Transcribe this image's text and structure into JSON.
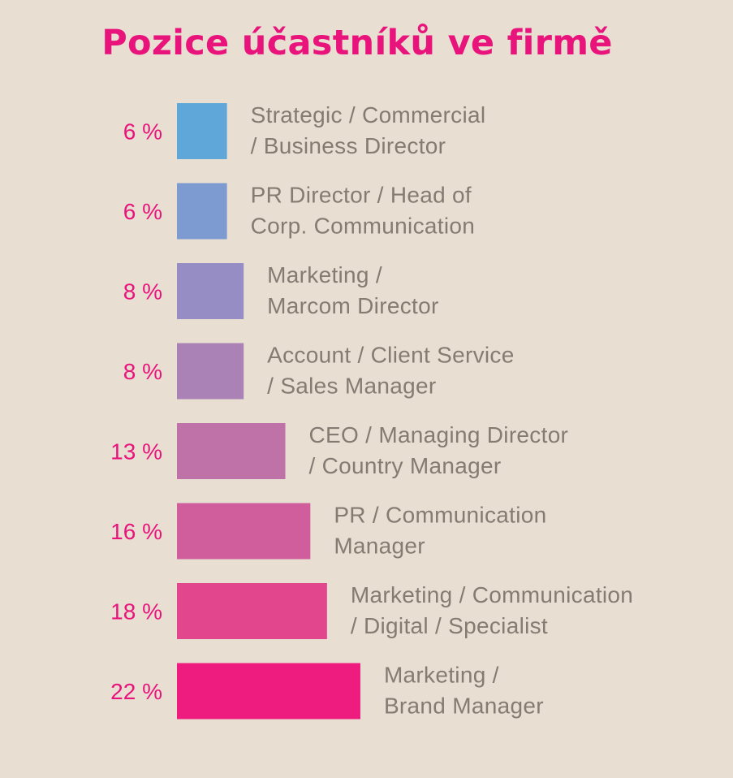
{
  "chart_data": {
    "type": "bar",
    "orientation": "horizontal",
    "title": "Pozice účastníků ve firmě",
    "value_suffix": " %",
    "categories": [
      [
        "Strategic / Commercial",
        "/ Business Director"
      ],
      [
        "PR Director / Head of",
        "Corp. Communication"
      ],
      [
        "Marketing /",
        "Marcom Director"
      ],
      [
        "Account / Client Service",
        "/ Sales Manager"
      ],
      [
        "CEO / Managing Director",
        "/ Country Manager"
      ],
      [
        "PR / Communication",
        "Manager"
      ],
      [
        "Marketing / Communication",
        "/ Digital / Specialist"
      ],
      [
        "Marketing /",
        "Brand Manager"
      ]
    ],
    "values": [
      6,
      6,
      8,
      8,
      13,
      16,
      18,
      22
    ],
    "bar_colors": [
      "#5fa6d9",
      "#7d9bd0",
      "#958dc3",
      "#ab82b6",
      "#be72a8",
      "#d05d9c",
      "#e2478e",
      "#ef1c80"
    ],
    "xlim": [
      0,
      22
    ],
    "grid": false,
    "legend": "none"
  },
  "colors": {
    "background": "#e8ded1",
    "accent": "#e8147c",
    "label_text": "#867a72"
  }
}
